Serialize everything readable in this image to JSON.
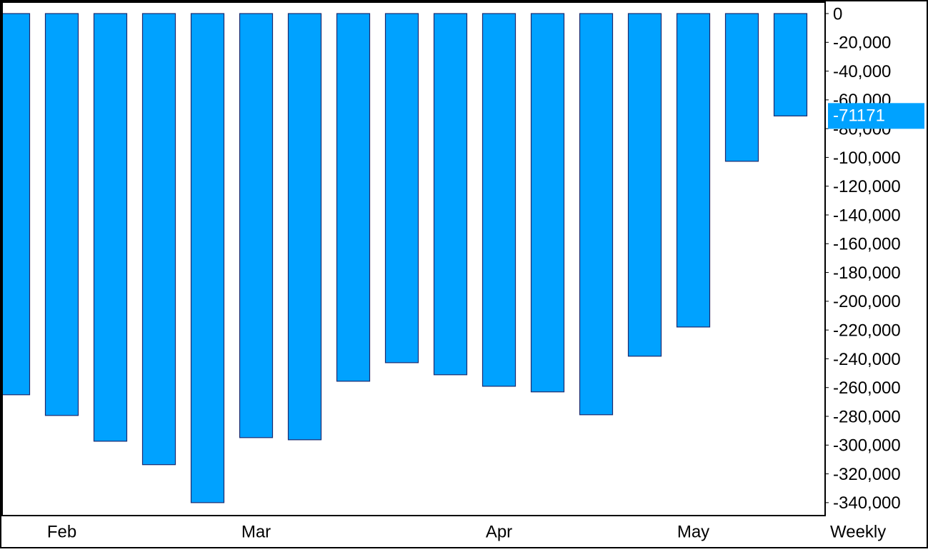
{
  "chart_data": {
    "type": "bar",
    "categories": [
      null,
      "Feb",
      null,
      null,
      null,
      "Mar",
      null,
      null,
      null,
      null,
      "Apr",
      null,
      null,
      null,
      "May",
      null,
      null
    ],
    "values": [
      -265000,
      -279400,
      -297300,
      -313600,
      -340000,
      -294800,
      -296300,
      -255600,
      -242700,
      -251100,
      -259100,
      -263000,
      -278900,
      -238200,
      -217900,
      -102700,
      -71171
    ],
    "color": "#00a2ff",
    "edge_color": "#1c2a6e",
    "x_label": "Weekly",
    "ylim": [
      -349000,
      0
    ],
    "yticks": [
      0,
      {
        "value": -20000,
        "label": "-20,000"
      },
      {
        "value": -40000,
        "label": "-40,000"
      },
      {
        "value": -60000,
        "label": "-60,000"
      },
      {
        "value": -80000,
        "label": "-80,000"
      },
      {
        "value": -100000,
        "label": "-100,000"
      },
      {
        "value": -120000,
        "label": "-120,000"
      },
      {
        "value": -140000,
        "label": "-140,000"
      },
      {
        "value": -160000,
        "label": "-160,000"
      },
      {
        "value": -180000,
        "label": "-180,000"
      },
      {
        "value": -200000,
        "label": "-200,000"
      },
      {
        "value": -220000,
        "label": "-220,000"
      },
      {
        "value": -240000,
        "label": "-240,000"
      },
      {
        "value": -260000,
        "label": "-260,000"
      },
      {
        "value": -280000,
        "label": "-280,000"
      },
      {
        "value": -300000,
        "label": "-300,000"
      },
      {
        "value": -320000,
        "label": "-320,000"
      },
      {
        "value": -340000,
        "label": "-340,000"
      }
    ],
    "grid": false
  }
}
